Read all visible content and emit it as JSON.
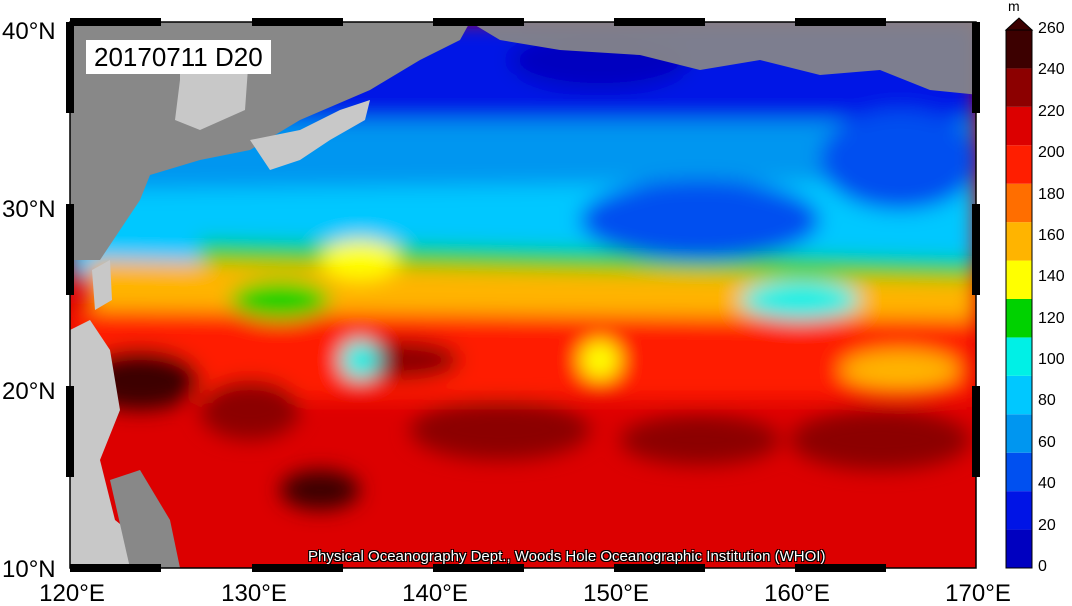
{
  "figure": {
    "date_label": "20170711 D20",
    "credit": "Physical Oceanography Dept., Woods Hole Oceanographic Institution (WHOI)"
  },
  "axes": {
    "lat_labels": [
      "40°N",
      "30°N",
      "20°N",
      "10°N"
    ],
    "lon_labels": [
      "120°E",
      "130°E",
      "140°E",
      "150°E",
      "160°E",
      "170°E"
    ],
    "lon_range": [
      120,
      170
    ],
    "lat_range": [
      10,
      40
    ]
  },
  "colorbar": {
    "unit": "m",
    "ticks": [
      "0",
      "20",
      "40",
      "60",
      "80",
      "100",
      "120",
      "140",
      "160",
      "180",
      "200",
      "220",
      "240",
      "260"
    ],
    "colors": [
      "#0000c0",
      "#0014e6",
      "#0050f0",
      "#0096f0",
      "#00c8ff",
      "#00f0e6",
      "#00d200",
      "#ffff00",
      "#ffb400",
      "#ff6e00",
      "#ff1e00",
      "#dc0000",
      "#8c0000",
      "#3c0000"
    ]
  },
  "colors": {
    "land": "#888888",
    "land_light": "#c8c8c8"
  }
}
